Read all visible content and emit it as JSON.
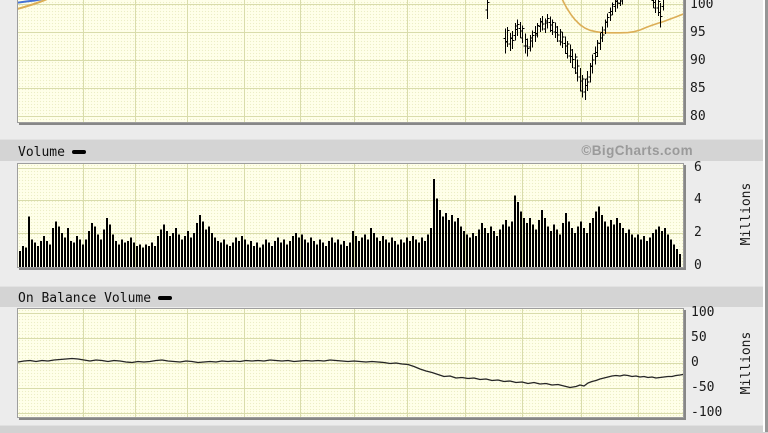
{
  "branding": {
    "watermark": "©BigCharts.com"
  },
  "colors": {
    "plot_bg": "#ffffe9",
    "grid": "#d9dcab",
    "price_bars": "#000000",
    "ma_line": "#dcae56",
    "blue_line": "#4572d6",
    "volume_bars": "#000000",
    "obv_line": "#262626",
    "header_bg": "#d4d4d4",
    "watermark": "#9a9a9a"
  },
  "chart_data": [
    {
      "id": "price",
      "type": "ohlc",
      "label": "",
      "y_ticks": [
        100,
        95,
        90,
        85,
        80
      ],
      "visible_y_range": [
        79,
        101
      ],
      "bars": [
        [
          487,
          101.5,
          97.3
        ],
        [
          505,
          95.6,
          91.2
        ],
        [
          507,
          95.9,
          92.3
        ],
        [
          510,
          94.8,
          91.6
        ],
        [
          512,
          95.2,
          92.0
        ],
        [
          515,
          96.6,
          93.5
        ],
        [
          517,
          97.2,
          94.3
        ],
        [
          520,
          96.8,
          93.9
        ],
        [
          522,
          96.2,
          93.0
        ],
        [
          525,
          94.7,
          91.2
        ],
        [
          527,
          93.8,
          90.6
        ],
        [
          530,
          94.5,
          91.5
        ],
        [
          532,
          95.3,
          92.2
        ],
        [
          535,
          96.1,
          93.2
        ],
        [
          537,
          96.6,
          94.0
        ],
        [
          540,
          97.5,
          95.0
        ],
        [
          542,
          97.9,
          95.3
        ],
        [
          545,
          97.4,
          94.8
        ],
        [
          547,
          98.2,
          95.6
        ],
        [
          550,
          97.8,
          95.0
        ],
        [
          552,
          97.2,
          94.5
        ],
        [
          555,
          96.7,
          93.9
        ],
        [
          557,
          96.1,
          93.2
        ],
        [
          560,
          95.5,
          92.6
        ],
        [
          562,
          95.0,
          92.1
        ],
        [
          565,
          94.2,
          91.1
        ],
        [
          567,
          93.4,
          90.3
        ],
        [
          570,
          92.8,
          89.5
        ],
        [
          572,
          92.0,
          88.6
        ],
        [
          575,
          91.2,
          87.5
        ],
        [
          577,
          90.1,
          86.2
        ],
        [
          580,
          88.6,
          84.4
        ],
        [
          582,
          87.3,
          83.3
        ],
        [
          585,
          86.6,
          82.9
        ],
        [
          587,
          88.0,
          84.5
        ],
        [
          590,
          89.5,
          86.0
        ],
        [
          592,
          91.0,
          87.6
        ],
        [
          595,
          92.4,
          89.2
        ],
        [
          597,
          93.6,
          90.5
        ],
        [
          600,
          94.8,
          91.8
        ],
        [
          602,
          96.0,
          93.2
        ],
        [
          605,
          97.2,
          94.6
        ],
        [
          607,
          98.3,
          95.8
        ],
        [
          610,
          99.4,
          97.0
        ],
        [
          612,
          100.3,
          98.0
        ],
        [
          615,
          101.2,
          98.6
        ],
        [
          617,
          101.4,
          99.2
        ],
        [
          620,
          101.5,
          99.6
        ],
        [
          622,
          101.5,
          99.9
        ],
        [
          653,
          101.5,
          99.3
        ],
        [
          655,
          101.5,
          98.4
        ],
        [
          658,
          101.5,
          97.9
        ],
        [
          660,
          100.2,
          95.8
        ],
        [
          663,
          101.5,
          98.8
        ]
      ],
      "ma_line_points": [
        [
          561,
          101.3
        ],
        [
          564,
          100.2
        ],
        [
          567,
          99.2
        ],
        [
          571,
          98.1
        ],
        [
          575,
          97.2
        ],
        [
          580,
          96.3
        ],
        [
          585,
          95.7
        ],
        [
          590,
          95.3
        ],
        [
          596,
          95.05
        ],
        [
          602,
          94.9
        ],
        [
          610,
          94.85
        ],
        [
          620,
          94.85
        ],
        [
          628,
          94.9
        ],
        [
          634,
          95.05
        ],
        [
          640,
          95.35
        ],
        [
          646,
          95.8
        ],
        [
          652,
          96.2
        ],
        [
          658,
          96.55
        ],
        [
          664,
          96.9
        ],
        [
          670,
          97.3
        ],
        [
          676,
          97.7
        ],
        [
          683,
          98.2
        ]
      ],
      "blue_line_points": [
        [
          18,
          100.25
        ],
        [
          26,
          100.45
        ],
        [
          34,
          100.6
        ],
        [
          42,
          100.85
        ],
        [
          50,
          101.1
        ],
        [
          56,
          101.5
        ]
      ],
      "tan_left_line_points": [
        [
          18,
          99.15
        ],
        [
          26,
          99.55
        ],
        [
          34,
          100.0
        ],
        [
          42,
          100.5
        ],
        [
          48,
          100.95
        ],
        [
          52,
          101.4
        ]
      ]
    },
    {
      "id": "volume",
      "type": "bar",
      "label": "Volume",
      "unit": "Millions",
      "y_ticks": [
        6,
        4,
        2,
        0
      ],
      "x_start": 19,
      "x_pitch": 3,
      "values": [
        0.9,
        1.2,
        1.1,
        3.0,
        1.6,
        1.4,
        1.2,
        1.5,
        1.8,
        1.5,
        1.3,
        2.3,
        2.7,
        2.4,
        2.0,
        1.7,
        2.3,
        1.5,
        1.4,
        1.8,
        1.6,
        1.3,
        1.6,
        2.1,
        2.6,
        2.4,
        1.9,
        1.6,
        2.2,
        2.9,
        2.5,
        1.9,
        1.5,
        1.3,
        1.6,
        1.4,
        1.5,
        1.7,
        1.4,
        1.2,
        1.3,
        1.1,
        1.3,
        1.2,
        1.4,
        1.2,
        1.8,
        2.2,
        2.5,
        2.1,
        1.8,
        2.0,
        2.3,
        1.9,
        1.6,
        1.8,
        2.1,
        1.7,
        2.0,
        2.6,
        3.1,
        2.7,
        2.2,
        2.4,
        2.0,
        1.7,
        1.5,
        1.4,
        1.6,
        1.3,
        1.2,
        1.4,
        1.7,
        1.5,
        1.8,
        1.6,
        1.3,
        1.5,
        1.2,
        1.4,
        1.1,
        1.3,
        1.6,
        1.4,
        1.2,
        1.5,
        1.7,
        1.4,
        1.6,
        1.3,
        1.5,
        1.8,
        2.0,
        1.7,
        1.9,
        1.6,
        1.4,
        1.7,
        1.5,
        1.3,
        1.6,
        1.4,
        1.2,
        1.5,
        1.7,
        1.4,
        1.6,
        1.3,
        1.5,
        1.2,
        1.4,
        2.1,
        1.8,
        1.5,
        1.7,
        1.9,
        1.6,
        2.3,
        2.0,
        1.7,
        1.5,
        1.8,
        1.6,
        1.4,
        1.7,
        1.5,
        1.3,
        1.6,
        1.4,
        1.7,
        1.5,
        1.8,
        1.6,
        1.4,
        1.7,
        1.5,
        1.9,
        2.3,
        5.3,
        4.1,
        3.4,
        3.0,
        3.2,
        2.8,
        3.1,
        2.7,
        2.9,
        2.4,
        2.1,
        1.9,
        1.7,
        2.0,
        1.8,
        2.2,
        2.6,
        2.3,
        2.0,
        2.4,
        2.1,
        1.8,
        2.2,
        2.5,
        2.8,
        2.4,
        2.7,
        4.3,
        3.9,
        3.3,
        2.9,
        2.6,
        2.9,
        2.5,
        2.2,
        2.8,
        3.4,
        2.9,
        2.4,
        2.1,
        2.5,
        2.2,
        1.9,
        2.6,
        3.2,
        2.7,
        2.3,
        2.0,
        2.4,
        2.7,
        2.3,
        2.0,
        2.6,
        2.9,
        3.3,
        3.6,
        3.1,
        2.7,
        2.4,
        2.8,
        2.5,
        2.9,
        2.6,
        2.3,
        2.0,
        2.2,
        1.9,
        1.7,
        1.9,
        1.6,
        1.8,
        1.5,
        1.7,
        2.0,
        2.2,
        2.4,
        2.1,
        2.3,
        1.9,
        1.6,
        1.3,
        1.0,
        0.7
      ]
    },
    {
      "id": "obv",
      "type": "line",
      "label": "On Balance Volume",
      "unit": "Millions",
      "y_ticks": [
        100,
        50,
        0,
        -50,
        -100
      ],
      "points": [
        [
          18,
          2
        ],
        [
          24,
          4
        ],
        [
          30,
          5
        ],
        [
          36,
          3
        ],
        [
          42,
          5
        ],
        [
          48,
          4
        ],
        [
          54,
          6
        ],
        [
          60,
          7
        ],
        [
          66,
          8
        ],
        [
          72,
          9
        ],
        [
          78,
          8
        ],
        [
          84,
          6
        ],
        [
          90,
          4
        ],
        [
          96,
          6
        ],
        [
          102,
          5
        ],
        [
          108,
          3
        ],
        [
          114,
          5
        ],
        [
          120,
          4
        ],
        [
          126,
          2
        ],
        [
          132,
          1
        ],
        [
          138,
          3
        ],
        [
          144,
          2
        ],
        [
          150,
          3
        ],
        [
          156,
          5
        ],
        [
          162,
          6
        ],
        [
          168,
          4
        ],
        [
          174,
          3
        ],
        [
          180,
          2
        ],
        [
          186,
          4
        ],
        [
          192,
          3
        ],
        [
          198,
          1
        ],
        [
          204,
          2
        ],
        [
          210,
          3
        ],
        [
          216,
          2
        ],
        [
          222,
          4
        ],
        [
          228,
          3
        ],
        [
          234,
          4
        ],
        [
          240,
          3
        ],
        [
          246,
          5
        ],
        [
          252,
          4
        ],
        [
          258,
          5
        ],
        [
          264,
          4
        ],
        [
          270,
          6
        ],
        [
          276,
          5
        ],
        [
          282,
          4
        ],
        [
          288,
          5
        ],
        [
          294,
          3
        ],
        [
          300,
          4
        ],
        [
          306,
          5
        ],
        [
          312,
          4
        ],
        [
          318,
          5
        ],
        [
          324,
          4
        ],
        [
          330,
          6
        ],
        [
          336,
          5
        ],
        [
          342,
          4
        ],
        [
          348,
          3
        ],
        [
          354,
          4
        ],
        [
          360,
          3
        ],
        [
          366,
          2
        ],
        [
          372,
          3
        ],
        [
          378,
          2
        ],
        [
          384,
          1
        ],
        [
          390,
          -1
        ],
        [
          396,
          0
        ],
        [
          402,
          -2
        ],
        [
          408,
          -3
        ],
        [
          414,
          -7
        ],
        [
          420,
          -12
        ],
        [
          426,
          -16
        ],
        [
          432,
          -19
        ],
        [
          438,
          -23
        ],
        [
          444,
          -27
        ],
        [
          450,
          -26
        ],
        [
          456,
          -30
        ],
        [
          462,
          -29
        ],
        [
          468,
          -31
        ],
        [
          474,
          -30
        ],
        [
          480,
          -33
        ],
        [
          486,
          -32
        ],
        [
          492,
          -35
        ],
        [
          498,
          -34
        ],
        [
          504,
          -37
        ],
        [
          510,
          -36
        ],
        [
          516,
          -39
        ],
        [
          522,
          -38
        ],
        [
          528,
          -41
        ],
        [
          534,
          -39
        ],
        [
          540,
          -42
        ],
        [
          546,
          -41
        ],
        [
          552,
          -44
        ],
        [
          558,
          -43
        ],
        [
          564,
          -46
        ],
        [
          570,
          -49
        ],
        [
          576,
          -47
        ],
        [
          580,
          -44
        ],
        [
          584,
          -46
        ],
        [
          588,
          -40
        ],
        [
          592,
          -37
        ],
        [
          596,
          -35
        ],
        [
          600,
          -32
        ],
        [
          604,
          -30
        ],
        [
          608,
          -28
        ],
        [
          612,
          -26
        ],
        [
          616,
          -25
        ],
        [
          620,
          -26
        ],
        [
          624,
          -24
        ],
        [
          628,
          -25
        ],
        [
          632,
          -27
        ],
        [
          636,
          -26
        ],
        [
          640,
          -28
        ],
        [
          644,
          -27
        ],
        [
          648,
          -29
        ],
        [
          652,
          -28
        ],
        [
          656,
          -30
        ],
        [
          660,
          -29
        ],
        [
          664,
          -28
        ],
        [
          668,
          -27
        ],
        [
          672,
          -27
        ],
        [
          676,
          -25
        ],
        [
          680,
          -24
        ],
        [
          683,
          -23
        ]
      ]
    }
  ]
}
